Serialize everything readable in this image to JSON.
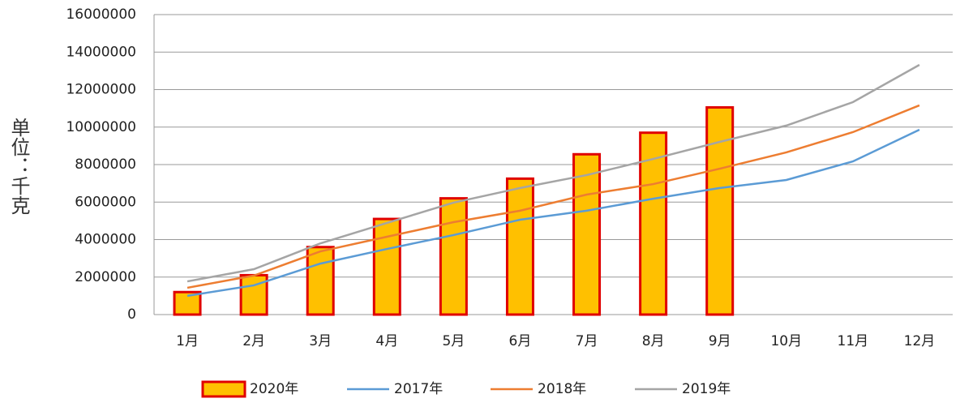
{
  "chart_data": {
    "type": "bar",
    "y_label": "单位：千克",
    "categories": [
      "1月",
      "2月",
      "3月",
      "4月",
      "5月",
      "6月",
      "7月",
      "8月",
      "9月",
      "10月",
      "11月",
      "12月"
    ],
    "series": [
      {
        "name": "2020年",
        "type": "bar",
        "color": "#ffc000",
        "edge_color": "#e00000",
        "values": [
          1200000,
          2100000,
          3600000,
          5100000,
          6200000,
          7250000,
          8550000,
          9700000,
          11050000,
          null,
          null,
          null
        ]
      },
      {
        "name": "2017年",
        "type": "line",
        "color": "#5b9bd5",
        "values": [
          1000000,
          1560000,
          2720000,
          3500000,
          4240000,
          5060000,
          5540000,
          6180000,
          6750000,
          7180000,
          8170000,
          9860000
        ]
      },
      {
        "name": "2018年",
        "type": "line",
        "color": "#ed7d31",
        "values": [
          1430000,
          2080000,
          3370000,
          4150000,
          4930000,
          5540000,
          6400000,
          6960000,
          7780000,
          8650000,
          9730000,
          11160000
        ]
      },
      {
        "name": "2019年",
        "type": "line",
        "color": "#a5a5a5",
        "values": [
          1770000,
          2420000,
          3800000,
          4890000,
          5970000,
          6750000,
          7440000,
          8300000,
          9210000,
          10080000,
          11330000,
          13320000
        ]
      }
    ],
    "ylim": [
      0,
      16000000
    ],
    "yticks": [
      0,
      2000000,
      4000000,
      6000000,
      8000000,
      10000000,
      12000000,
      14000000,
      16000000
    ],
    "grid": true,
    "legend": "bottom"
  }
}
